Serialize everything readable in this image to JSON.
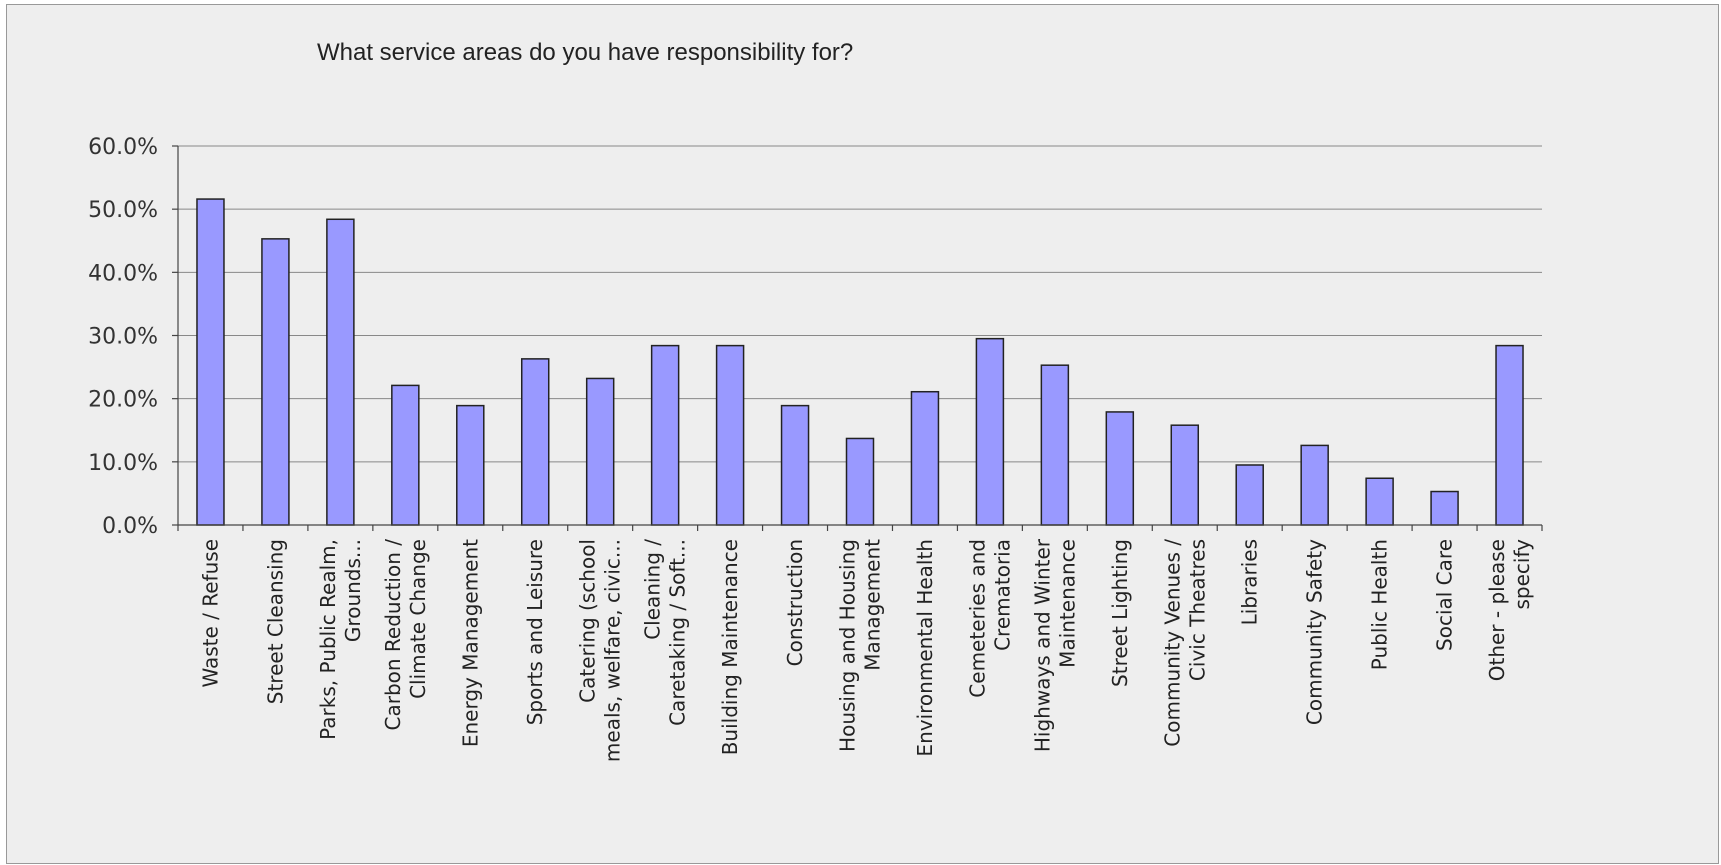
{
  "chart_data": {
    "type": "bar",
    "title": "What service areas do you have responsibility for?",
    "xlabel": "",
    "ylabel": "",
    "ylim": [
      0,
      60
    ],
    "ytick_labels": [
      "0.0%",
      "10.0%",
      "20.0%",
      "30.0%",
      "40.0%",
      "50.0%",
      "60.0%"
    ],
    "ytick_values": [
      0,
      10,
      20,
      30,
      40,
      50,
      60
    ],
    "grid": true,
    "legend": "none",
    "bar_color": "#9999ff",
    "background": "#eeeeee",
    "categories": [
      [
        "Waste / Refuse"
      ],
      [
        "Street Cleansing"
      ],
      [
        "Parks, Public Realm,",
        "Grounds..."
      ],
      [
        "Carbon Reduction /",
        "Climate Change"
      ],
      [
        "Energy Management"
      ],
      [
        "Sports and Leisure"
      ],
      [
        "Catering (school",
        "meals, welfare, civic..."
      ],
      [
        "Cleaning /",
        "Caretaking / Soft..."
      ],
      [
        "Building Maintenance"
      ],
      [
        "Construction"
      ],
      [
        "Housing and Housing",
        "Management"
      ],
      [
        "Environmental Health"
      ],
      [
        "Cemeteries and",
        "Crematoria"
      ],
      [
        "Highways and Winter",
        "Maintenance"
      ],
      [
        "Street Lighting"
      ],
      [
        "Community Venues /",
        "Civic Theatres"
      ],
      [
        "Libraries"
      ],
      [
        "Community Safety"
      ],
      [
        "Public Health"
      ],
      [
        "Social Care"
      ],
      [
        "Other - please",
        "specify"
      ]
    ],
    "values": [
      51.6,
      45.3,
      48.4,
      22.1,
      18.9,
      26.3,
      23.2,
      28.4,
      28.4,
      18.9,
      13.7,
      21.1,
      29.5,
      25.3,
      17.9,
      15.8,
      9.5,
      12.6,
      7.4,
      5.3,
      28.4
    ]
  }
}
